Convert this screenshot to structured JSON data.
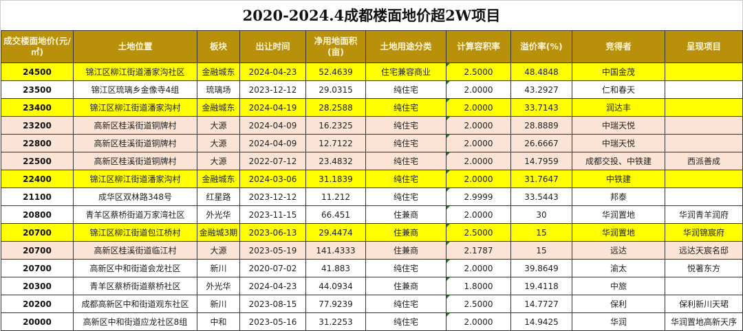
{
  "title": "2020-2024.4成都楼面地价超2W项目",
  "colors": {
    "header_bg": "#b8900a",
    "highlight_yellow": "#ffff00",
    "highlight_pink": "#fbe4d5"
  },
  "headers": [
    "成交楼面地价(元/㎡)",
    "土地位置",
    "板块",
    "出让时间",
    "净用地面积(亩)",
    "土地用途分类",
    "计算容积率",
    "溢价率(%)",
    "竞得者",
    "呈现项目"
  ],
  "rows": [
    {
      "hl": "yellow",
      "cells": [
        "24500",
        "锦江区柳江街道潘家沟社区",
        "金融城东",
        "2024-04-23",
        "52.4639",
        "住宅兼容商业",
        "2.5000",
        "48.4848",
        "中国金茂",
        ""
      ]
    },
    {
      "hl": "white",
      "cells": [
        "23500",
        "锦江区琉璃乡金像寺4组",
        "琉璃场",
        "2023-12-12",
        "29.0315",
        "纯住宅",
        "2.0000",
        "43.2927",
        "仁和春天",
        ""
      ]
    },
    {
      "hl": "yellow",
      "cells": [
        "23400",
        "锦江区柳江街道潘家沟村",
        "金融城东",
        "2024-04-19",
        "28.2588",
        "纯住宅",
        "2.0000",
        "33.7143",
        "润达丰",
        ""
      ]
    },
    {
      "hl": "pink",
      "cells": [
        "23200",
        "高新区桂溪街道铜牌村",
        "大源",
        "2024-04-09",
        "16.2325",
        "纯住宅",
        "2.0000",
        "28.8889",
        "中瑞天悦",
        ""
      ]
    },
    {
      "hl": "pink",
      "cells": [
        "22800",
        "高新区桂溪街道铜牌村",
        "大源",
        "2024-04-09",
        "12.7122",
        "纯住宅",
        "2.0000",
        "26.6667",
        "中瑞天悦",
        ""
      ]
    },
    {
      "hl": "pink",
      "cells": [
        "22500",
        "高新区桂溪街道铜牌村",
        "大源",
        "2022-07-12",
        "23.4832",
        "纯住宅",
        "2.0000",
        "14.7959",
        "成都交投、中铁建",
        "西派善成"
      ]
    },
    {
      "hl": "yellow",
      "cells": [
        "22400",
        "锦江区柳江街道潘家沟村",
        "金融城东",
        "2024-03-06",
        "31.1839",
        "纯住宅",
        "2.0000",
        "31.7647",
        "中铁建",
        ""
      ]
    },
    {
      "hl": "white",
      "cells": [
        "21100",
        "成华区双林路348号",
        "红星路",
        "2023-12-12",
        "11.212",
        "纯住宅",
        "2.9999",
        "33.5443",
        "邦泰",
        ""
      ]
    },
    {
      "hl": "white",
      "cells": [
        "20800",
        "青羊区蔡桥街道万家湾社区",
        "外光华",
        "2023-11-15",
        "66.451",
        "住兼商",
        "2.0000",
        "30",
        "华润置地",
        "华润青羊润府"
      ]
    },
    {
      "hl": "yellow",
      "cells": [
        "20700",
        "锦江区柳江街道包江桥村",
        "金融城3期",
        "2023-06-13",
        "29.4474",
        "住兼商",
        "2.5000",
        "15",
        "华润置地",
        "华润锦宸府"
      ]
    },
    {
      "hl": "pink",
      "cells": [
        "20700",
        "高新区桂溪街道临江村",
        "大源",
        "2023-05-19",
        "141.4333",
        "住兼商",
        "2.1787",
        "15",
        "远达",
        "远达天宸名邸"
      ]
    },
    {
      "hl": "white",
      "cells": [
        "20700",
        "高新区中和街道会龙社区",
        "新川",
        "2020-07-02",
        "41.883",
        "纯住宅",
        "2.0000",
        "39.8649",
        "渝太",
        "悦著东方"
      ]
    },
    {
      "hl": "white",
      "cells": [
        "20300",
        "青羊区蔡桥街道蔡桥社区",
        "外光华",
        "2024-04-23",
        "44.0934",
        "住兼商",
        "1.8000",
        "19.4118",
        "中旅",
        ""
      ]
    },
    {
      "hl": "white",
      "cells": [
        "20200",
        "成都高新区中和街道观东社区",
        "新川",
        "2023-08-15",
        "77.9239",
        "纯住宅",
        "2.5000",
        "14.7727",
        "保利",
        "保利新川天珺"
      ]
    },
    {
      "hl": "white",
      "cells": [
        "20000",
        "高新区中和街道应龙社区8组",
        "中和",
        "2023-05-16",
        "31.2253",
        "纯住宅",
        "2.0000",
        "14.9425",
        "华润",
        "华润置地高新天序"
      ]
    }
  ]
}
